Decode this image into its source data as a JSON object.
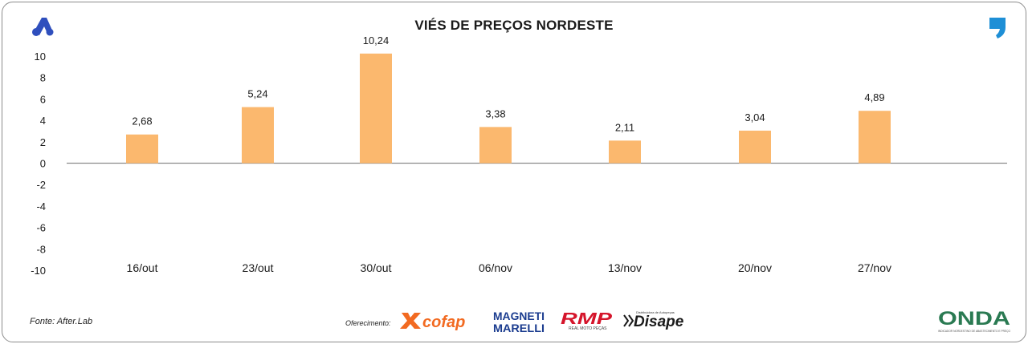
{
  "chart_data": {
    "type": "bar",
    "title": "VIÉS DE PREÇOS NORDESTE",
    "categories": [
      "16/out",
      "23/out",
      "30/out",
      "06/nov",
      "13/nov",
      "20/nov",
      "27/nov"
    ],
    "values": [
      2.68,
      5.24,
      10.24,
      3.38,
      2.11,
      3.04,
      4.89
    ],
    "value_labels": [
      "2,68",
      "5,24",
      "10,24",
      "3,38",
      "2,11",
      "3,04",
      "4,89"
    ],
    "ylim": [
      -10,
      10
    ],
    "yticks": [
      10,
      8,
      6,
      4,
      2,
      0,
      -2,
      -4,
      -6,
      -8,
      -10
    ],
    "ytick_labels": [
      "10",
      "8",
      "6",
      "4",
      "2",
      "0",
      "-2",
      "-4",
      "-6",
      "-8",
      "-10"
    ],
    "bar_color": "#fbb86e",
    "grid": false,
    "legend": "none"
  },
  "footer": {
    "source": "Fonte: After.Lab",
    "offer_label": "Oferecimento:",
    "sponsors": {
      "cofap": "cofap",
      "magneti_line1": "MAGNETI",
      "magneti_line2": "MARELLI",
      "rmp": "RMP",
      "rmp_sub": "REAL MOTO PEÇAS",
      "disape": "Disape",
      "disape_sub": "Distribuidora de Autopeças"
    },
    "onda": "ONDA",
    "onda_sub": "INDICADOR NORDESTINO DE ABASTECIMENTO E PREÇO"
  },
  "colors": {
    "logo_left": "#2f4fbd",
    "logo_right": "#1e8fd6",
    "cofap": "#f26a21",
    "magneti": "#1b3c8f",
    "rmp": "#d5152b",
    "disape": "#1a1a1a",
    "onda": "#2a7a52"
  },
  "icons": {
    "left_logo": "afterlab-a-logo-icon",
    "right_logo": "comma-logo-icon"
  }
}
